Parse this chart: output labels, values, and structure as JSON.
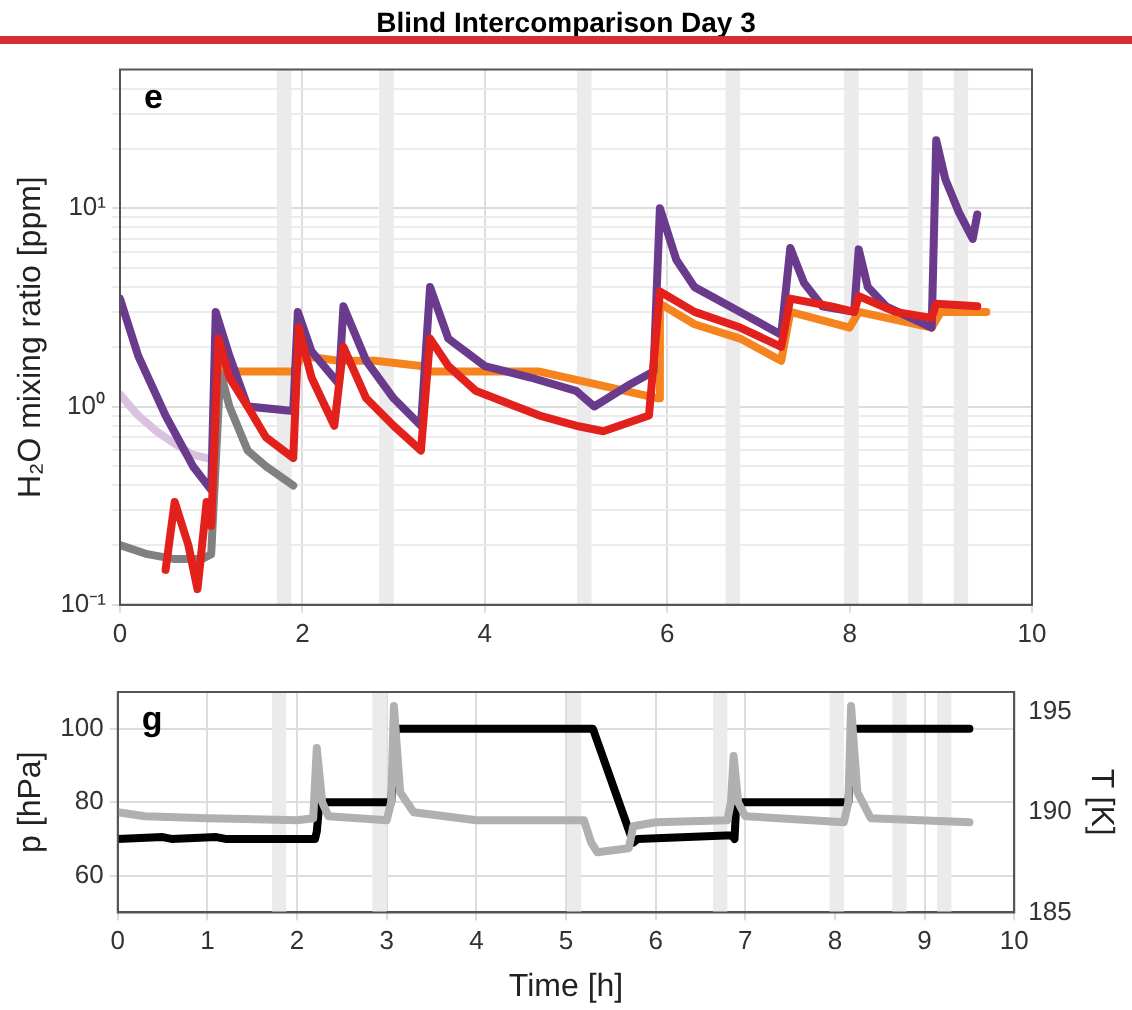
{
  "chart_data": [
    {
      "type": "line",
      "title": "Blind Intercomparison Day 3",
      "ylabel": "H₂O mixing ratio [ppm]",
      "annotations": [
        "e"
      ],
      "log": "y",
      "grid": true,
      "xlim": [
        0,
        10
      ],
      "xticks": [
        0,
        2,
        4,
        6,
        8,
        10
      ],
      "ylim": [
        0.1,
        50
      ],
      "yticks": [
        {
          "value": 0.1,
          "label": "10⁻¹"
        },
        {
          "value": 0.2,
          "label": null
        },
        {
          "value": 0.3,
          "label": null
        },
        {
          "value": 0.4,
          "label": null
        },
        {
          "value": 0.5,
          "label": null
        },
        {
          "value": 0.6,
          "label": null
        },
        {
          "value": 0.7,
          "label": null
        },
        {
          "value": 0.8,
          "label": null
        },
        {
          "value": 0.9,
          "label": null
        },
        {
          "value": 1,
          "label": "10⁰"
        },
        {
          "value": 2,
          "label": null
        },
        {
          "value": 3,
          "label": null
        },
        {
          "value": 4,
          "label": null
        },
        {
          "value": 5,
          "label": null
        },
        {
          "value": 6,
          "label": null
        },
        {
          "value": 7,
          "label": null
        },
        {
          "value": 8,
          "label": null
        },
        {
          "value": 9,
          "label": null
        },
        {
          "value": 10,
          "label": "10¹"
        },
        {
          "value": 20,
          "label": null
        },
        {
          "value": 30,
          "label": null
        },
        {
          "value": 40,
          "label": null
        }
      ],
      "bands": [
        {
          "axis": "x",
          "from": 1.72,
          "to": 1.88,
          "color": "#ebebeb"
        },
        {
          "axis": "x",
          "from": 2.84,
          "to": 3.0,
          "color": "#ebebeb"
        },
        {
          "axis": "x",
          "from": 5.01,
          "to": 5.17,
          "color": "#ebebeb"
        },
        {
          "axis": "x",
          "from": 6.64,
          "to": 6.8,
          "color": "#ebebeb"
        },
        {
          "axis": "x",
          "from": 7.94,
          "to": 8.1,
          "color": "#ebebeb"
        },
        {
          "axis": "x",
          "from": 8.64,
          "to": 8.8,
          "color": "#ebebeb"
        },
        {
          "axis": "x",
          "from": 9.14,
          "to": 9.3,
          "color": "#ebebeb"
        }
      ],
      "series": [
        {
          "color": "#d9c2e0",
          "x": [
            0,
            0.2,
            0.4,
            0.6,
            0.8,
            0.95
          ],
          "values": [
            1.15,
            0.9,
            0.75,
            0.65,
            0.57,
            0.55
          ]
        },
        {
          "color": "#808080",
          "x": [
            0,
            0.3,
            0.6,
            0.9,
            1.0,
            1.1,
            1.2,
            1.4,
            1.6,
            1.9
          ],
          "values": [
            0.2,
            0.18,
            0.17,
            0.17,
            0.18,
            1.5,
            1.0,
            0.6,
            0.5,
            0.4
          ]
        },
        {
          "color": "#f5841f",
          "x": [
            1.1,
            1.3,
            1.6,
            1.9,
            2.0,
            2.4,
            2.8,
            3.3,
            3.4,
            4.0,
            4.6,
            5.2,
            5.9,
            5.92,
            6.3,
            6.8,
            7.25,
            7.35,
            8.0,
            8.1,
            8.9,
            9.0,
            9.5
          ],
          "values": [
            1.6,
            1.5,
            1.5,
            1.5,
            1.8,
            1.7,
            1.7,
            1.6,
            1.5,
            1.5,
            1.5,
            1.3,
            1.1,
            3.3,
            2.6,
            2.2,
            1.7,
            3.0,
            2.5,
            3.0,
            2.5,
            3.0,
            3.0
          ]
        },
        {
          "color": "#6a3a8c",
          "x": [
            0,
            0.2,
            0.5,
            0.8,
            1.0,
            1.05,
            1.2,
            1.4,
            1.9,
            1.95,
            2.1,
            2.4,
            2.45,
            2.7,
            3.0,
            3.3,
            3.4,
            3.6,
            4.0,
            4.5,
            5.0,
            5.2,
            5.6,
            5.85,
            5.92,
            6.1,
            6.3,
            6.8,
            7.25,
            7.35,
            7.5,
            7.7,
            8.05,
            8.1,
            8.2,
            8.4,
            8.9,
            8.95,
            9.05,
            9.2,
            9.35,
            9.4
          ],
          "values": [
            3.5,
            1.8,
            0.9,
            0.5,
            0.38,
            3.0,
            1.8,
            1.0,
            0.95,
            3.0,
            1.9,
            1.3,
            3.2,
            1.7,
            1.1,
            0.8,
            4.0,
            2.2,
            1.6,
            1.4,
            1.2,
            1.0,
            1.3,
            1.5,
            10,
            5.5,
            4.0,
            3.0,
            2.3,
            6.3,
            4.2,
            3.2,
            3.0,
            6.2,
            4.0,
            3.2,
            2.5,
            22,
            14,
            9.5,
            7,
            9.3
          ]
        },
        {
          "color": "#e3211c",
          "x": [
            0.5,
            0.6,
            0.75,
            0.85,
            0.95,
            1.0,
            1.08,
            1.2,
            1.4,
            1.6,
            1.9,
            1.96,
            2.1,
            2.35,
            2.45,
            2.7,
            3.0,
            3.3,
            3.4,
            3.6,
            3.9,
            4.6,
            5.0,
            5.3,
            5.8,
            5.92,
            6.3,
            6.8,
            7.25,
            7.35,
            7.8,
            8.05,
            8.1,
            8.5,
            8.9,
            8.95,
            9.4
          ],
          "values": [
            0.15,
            0.33,
            0.2,
            0.12,
            0.33,
            0.25,
            2.2,
            1.4,
            1.0,
            0.7,
            0.55,
            2.5,
            1.4,
            0.8,
            2.0,
            1.1,
            0.8,
            0.6,
            2.2,
            1.6,
            1.2,
            0.9,
            0.8,
            0.75,
            0.9,
            3.8,
            3.0,
            2.5,
            2.0,
            3.5,
            3.2,
            3.0,
            3.6,
            3.0,
            2.8,
            3.3,
            3.2
          ]
        }
      ]
    },
    {
      "type": "line",
      "xlabel": "Time [h]",
      "ylabel": "p [hPa]",
      "y2label": "T [K]",
      "annotations": [
        "g"
      ],
      "grid": true,
      "xlim": [
        0,
        10
      ],
      "xticks": [
        0,
        1,
        2,
        3,
        4,
        5,
        6,
        7,
        8,
        9,
        10
      ],
      "ylim": [
        50,
        110
      ],
      "yticks": [
        60,
        80,
        100
      ],
      "y2lim": [
        185,
        196
      ],
      "y2ticks": [
        185,
        190,
        195
      ],
      "bands": [
        {
          "axis": "x",
          "from": 1.72,
          "to": 1.88,
          "color": "#ebebeb"
        },
        {
          "axis": "x",
          "from": 2.84,
          "to": 3.0,
          "color": "#ebebeb"
        },
        {
          "axis": "x",
          "from": 5.01,
          "to": 5.17,
          "color": "#ebebeb"
        },
        {
          "axis": "x",
          "from": 6.64,
          "to": 6.8,
          "color": "#ebebeb"
        },
        {
          "axis": "x",
          "from": 7.94,
          "to": 8.1,
          "color": "#ebebeb"
        },
        {
          "axis": "x",
          "from": 8.64,
          "to": 8.8,
          "color": "#ebebeb"
        },
        {
          "axis": "x",
          "from": 9.14,
          "to": 9.3,
          "color": "#ebebeb"
        }
      ],
      "series": [
        {
          "color": "#000000",
          "x": [
            0,
            0.5,
            0.6,
            1.1,
            1.2,
            2.2,
            2.22,
            2.25,
            3.05,
            3.1,
            5.3,
            5.75,
            5.8,
            6.85,
            6.88,
            6.9,
            8.15,
            8.2,
            9.5
          ],
          "values": [
            70,
            70.5,
            70,
            70.5,
            70,
            70,
            72,
            80,
            80,
            100,
            100,
            69,
            70,
            71,
            70,
            80,
            80,
            100,
            100
          ]
        },
        {
          "color": "#b0b0b0",
          "axis": "y2",
          "x": [
            0,
            0.3,
            1.0,
            2.0,
            2.18,
            2.22,
            2.28,
            2.35,
            3.0,
            3.05,
            3.08,
            3.15,
            3.3,
            4.0,
            5.2,
            5.28,
            5.35,
            5.7,
            5.75,
            6.0,
            6.8,
            6.84,
            6.87,
            6.92,
            7.0,
            8.1,
            8.15,
            8.18,
            8.25,
            8.4,
            9.5
          ],
          "values": [
            190,
            189.8,
            189.7,
            189.6,
            189.7,
            193.2,
            190.5,
            189.8,
            189.6,
            190.5,
            195.3,
            191,
            190,
            189.6,
            189.6,
            188.5,
            188,
            188.2,
            189.3,
            189.5,
            189.6,
            190.5,
            192.8,
            190.5,
            189.8,
            189.5,
            190.5,
            195.3,
            191,
            189.7,
            189.5
          ]
        }
      ]
    }
  ]
}
